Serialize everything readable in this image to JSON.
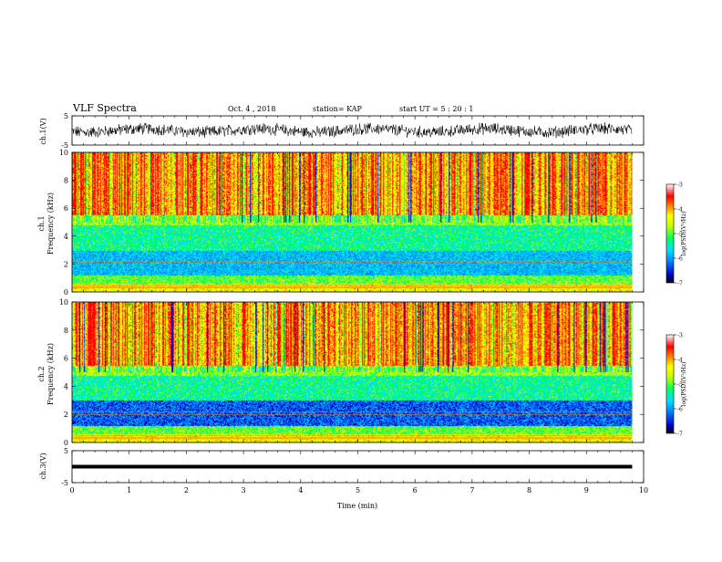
{
  "header": {
    "title": "VLF Spectra",
    "date": "Oct. 4 , 2018",
    "station": "station= KAP",
    "start": "start  UT =   5 : 20 : 1"
  },
  "chart_data": [
    {
      "type": "line",
      "ylabel": "ch.1(V)",
      "ylim": [
        -5,
        5
      ],
      "yticks": [
        "5",
        "-5"
      ],
      "xlim": [
        0,
        10
      ],
      "description": "noisy waveform fluctuating between about -2.5 and +2.5 V"
    },
    {
      "type": "heatmap",
      "ylabel": "ch.1\nFrequency (kHz)",
      "ylabel_line1": "ch.1",
      "ylabel_line2": "Frequency (kHz)",
      "ylim": [
        0,
        10
      ],
      "yticks": [
        "0",
        "2",
        "4",
        "6",
        "8",
        "10"
      ],
      "xlim": [
        0,
        9.8
      ],
      "colorbar": {
        "label": "log(PSD)(V²/Hz)",
        "range": [
          -7,
          -3
        ],
        "ticks": [
          "-3",
          "-4",
          "-5",
          "-6",
          "-7"
        ]
      },
      "description": "high power (red) above ~5 kHz, green/cyan band 1-5 kHz with blue striations, horizontal lines near 0.3-0.5 kHz"
    },
    {
      "type": "heatmap",
      "ylabel": "ch.2\nFrequency (kHz)",
      "ylabel_line1": "ch.2",
      "ylabel_line2": "Frequency (kHz)",
      "ylim": [
        0,
        10
      ],
      "yticks": [
        "0",
        "2",
        "4",
        "6",
        "8",
        "10"
      ],
      "xlim": [
        0,
        9.8
      ],
      "colorbar": {
        "label": "log(PSD)(V²/Hz)",
        "range": [
          -7,
          -3
        ],
        "ticks": [
          "-3",
          "-4",
          "-5",
          "-6",
          "-7"
        ]
      },
      "description": "similar to ch.1 with more blue below 3 kHz"
    },
    {
      "type": "line",
      "ylabel": "ch.3(V)",
      "ylim": [
        -5,
        5
      ],
      "yticks": [
        "5",
        "-5"
      ],
      "xlim": [
        0,
        10
      ],
      "xlabel": "Time (min)",
      "xticks": [
        "0",
        "1",
        "2",
        "3",
        "4",
        "5",
        "6",
        "7",
        "8",
        "9",
        "10"
      ],
      "series": [
        {
          "x": [
            0,
            9.8
          ],
          "y": [
            0,
            0
          ]
        }
      ]
    }
  ],
  "colors": {
    "scale": [
      "#000000",
      "#0000c8",
      "#0080ff",
      "#00e0ff",
      "#00ff60",
      "#c8ff00",
      "#ffff00",
      "#ff8000",
      "#ff0000",
      "#ffffff"
    ]
  }
}
